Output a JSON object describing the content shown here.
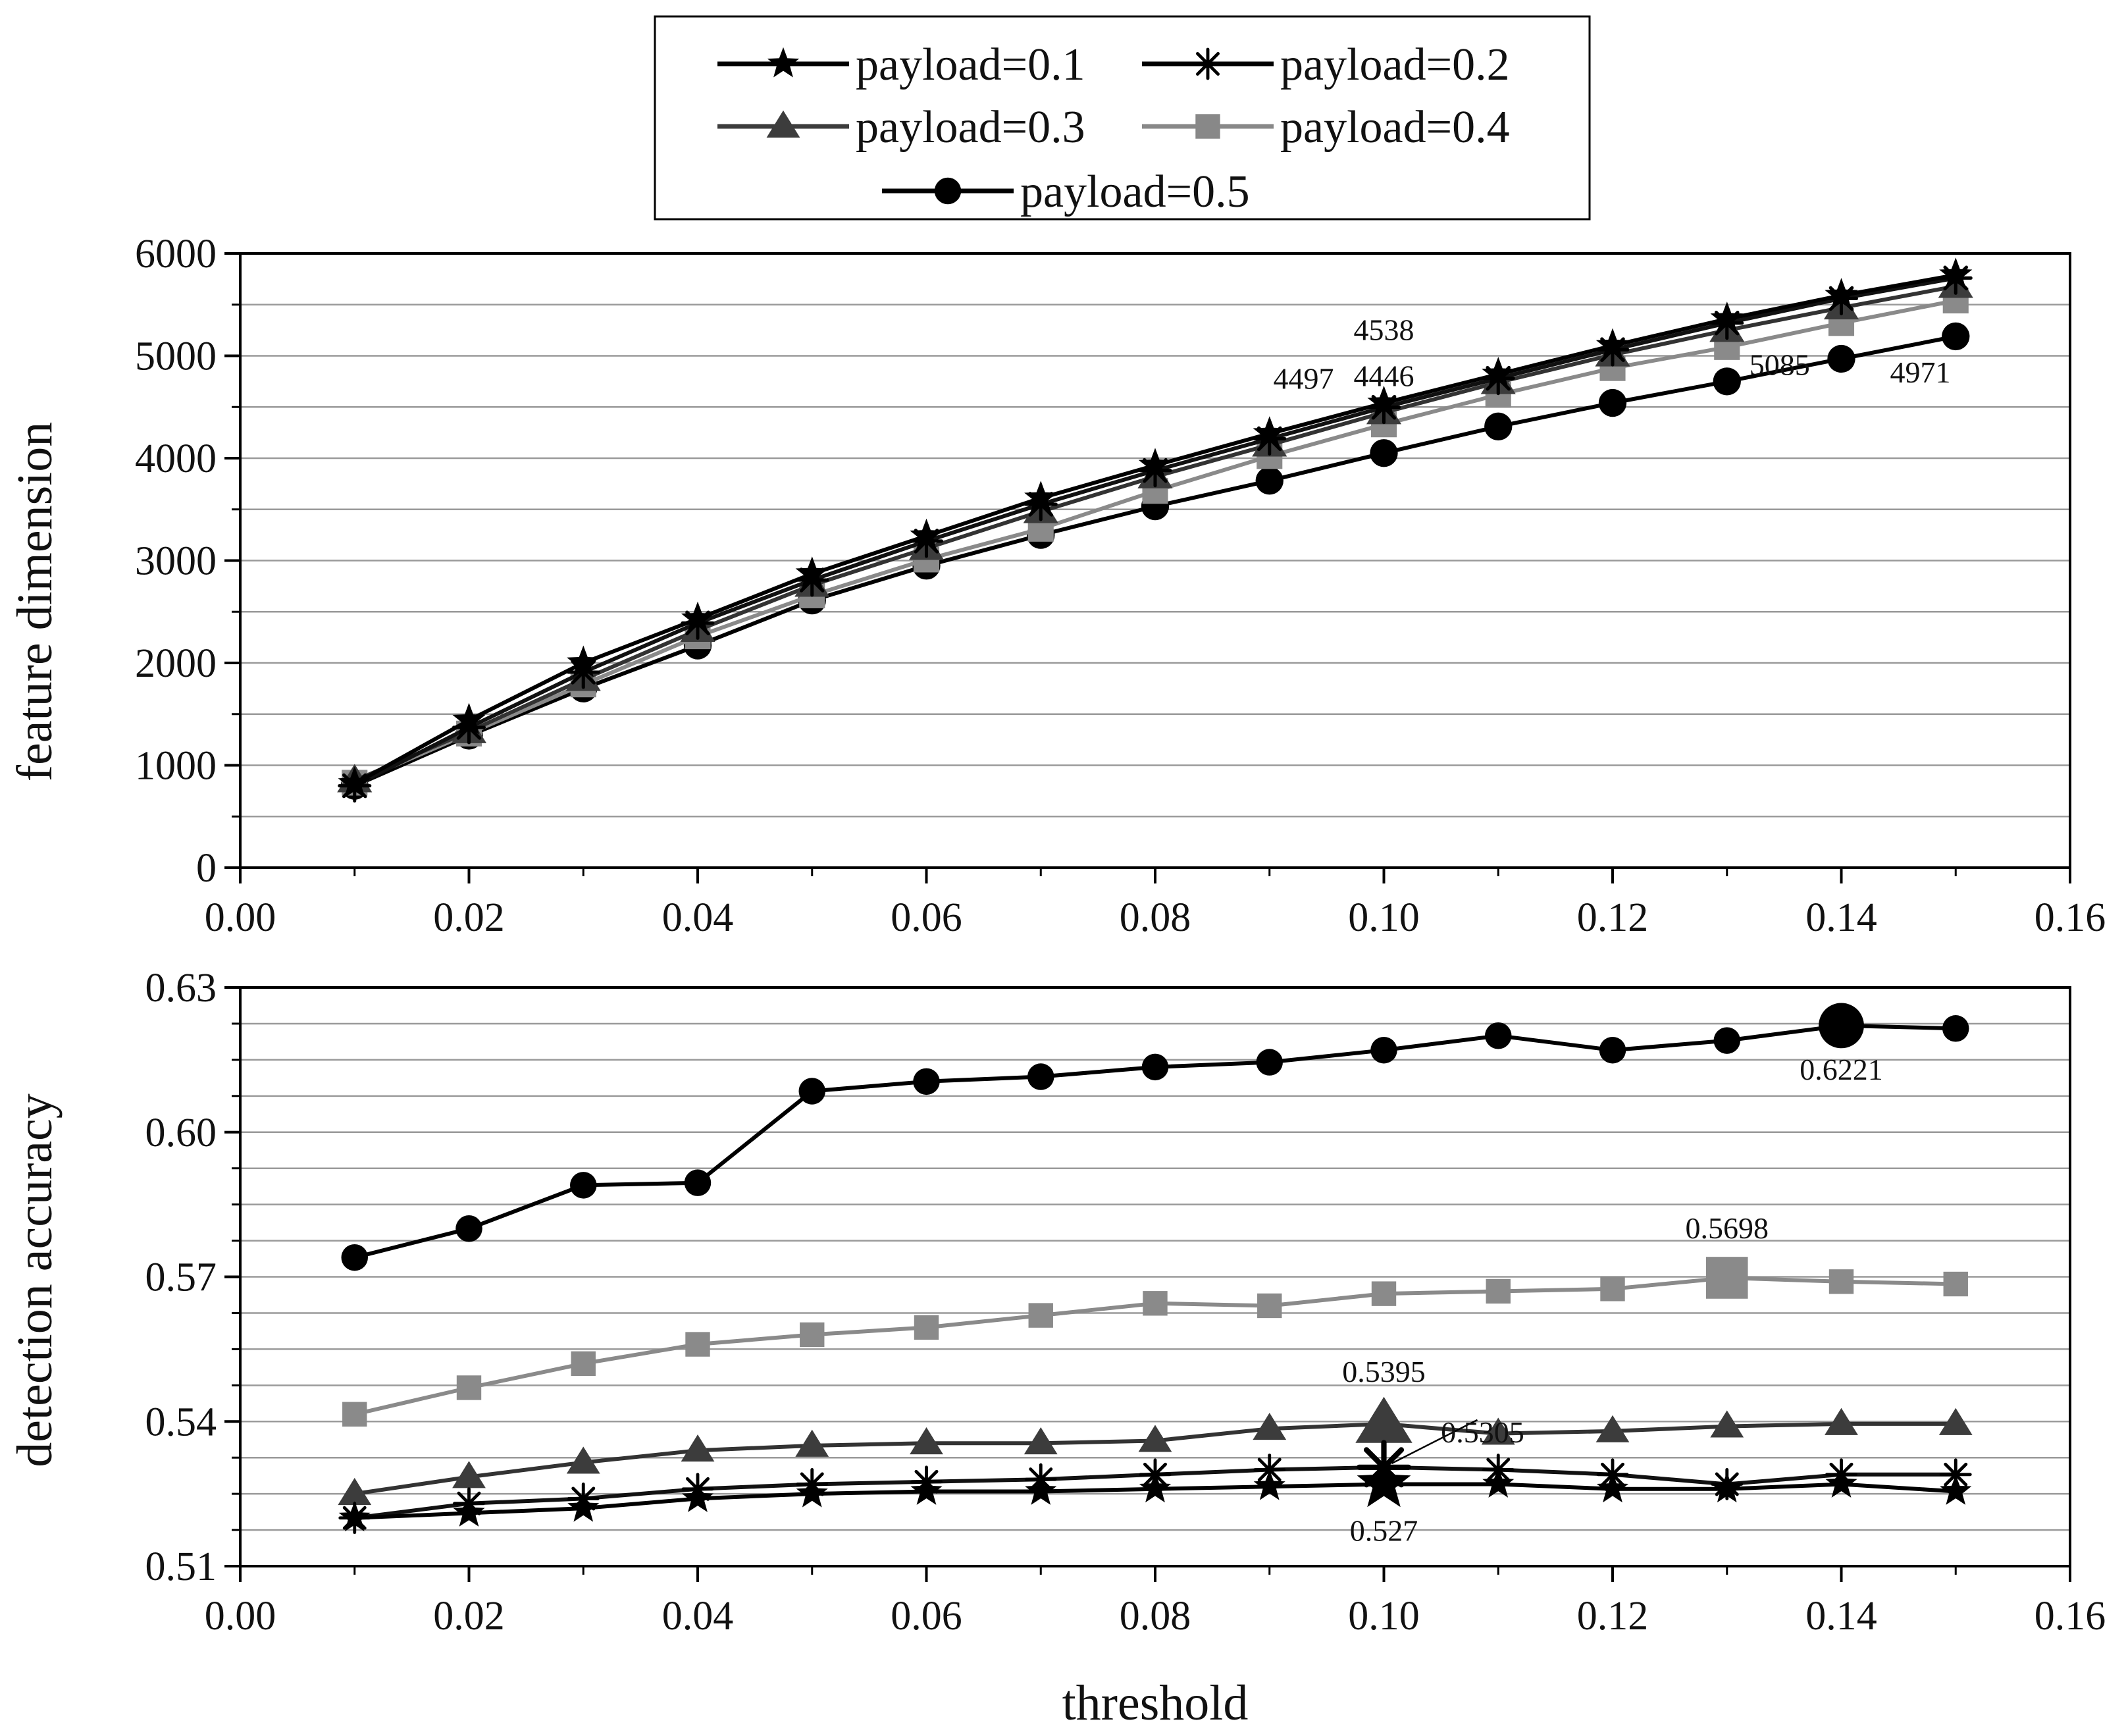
{
  "colors": {
    "black": "#000000",
    "dark": "#2b2b2b",
    "mid": "#444444",
    "light": "#888888",
    "grid": "#9a9a9a"
  },
  "legend": {
    "entries": [
      {
        "label": "payload=0.1",
        "marker": "star",
        "color": "#000000"
      },
      {
        "label": "payload=0.2",
        "marker": "asterisk",
        "color": "#000000"
      },
      {
        "label": "payload=0.3",
        "marker": "triangle",
        "color": "#3c3c3c"
      },
      {
        "label": "payload=0.4",
        "marker": "square",
        "color": "#888888"
      },
      {
        "label": "payload=0.5",
        "marker": "circle",
        "color": "#000000"
      }
    ]
  },
  "chart_data": [
    {
      "type": "line",
      "title": "",
      "xlabel": "",
      "ylabel": "feature dimension",
      "xlim": [
        0,
        0.16
      ],
      "ylim": [
        0,
        6000
      ],
      "xticks": [
        "0.00",
        "0.02",
        "0.04",
        "0.06",
        "0.08",
        "0.10",
        "0.12",
        "0.14",
        "0.16"
      ],
      "yticks": [
        "0",
        "1000",
        "2000",
        "3000",
        "4000",
        "5000",
        "6000"
      ],
      "x": [
        0.01,
        0.02,
        0.03,
        0.04,
        0.05,
        0.06,
        0.07,
        0.08,
        0.09,
        0.1,
        0.11,
        0.12,
        0.13,
        0.14,
        0.15
      ],
      "series": [
        {
          "name": "payload=0.1",
          "values": [
            820,
            1440,
            2000,
            2430,
            2870,
            3240,
            3610,
            3930,
            4240,
            4538,
            4820,
            5100,
            5360,
            5590,
            5790
          ]
        },
        {
          "name": "payload=0.2",
          "values": [
            800,
            1370,
            1910,
            2390,
            2810,
            3190,
            3550,
            3880,
            4190,
            4497,
            4780,
            5060,
            5320,
            5560,
            5760
          ]
        },
        {
          "name": "payload=0.3",
          "values": [
            850,
            1330,
            1840,
            2320,
            2760,
            3120,
            3480,
            3820,
            4130,
            4446,
            4740,
            5010,
            5250,
            5470,
            5680
          ]
        },
        {
          "name": "payload=0.4",
          "values": [
            830,
            1310,
            1790,
            2260,
            2660,
            3010,
            3310,
            3680,
            4020,
            4330,
            4620,
            4880,
            5085,
            5320,
            5540
          ]
        },
        {
          "name": "payload=0.5",
          "values": [
            800,
            1290,
            1750,
            2170,
            2610,
            2950,
            3250,
            3530,
            3780,
            4050,
            4310,
            4540,
            4750,
            4971,
            5190
          ]
        }
      ],
      "annotations": [
        {
          "text": "4538",
          "x": 0.1,
          "y": 4538,
          "series": "payload=0.1"
        },
        {
          "text": "4497",
          "x": 0.1,
          "y": 4497,
          "series": "payload=0.2"
        },
        {
          "text": "4446",
          "x": 0.1,
          "y": 4446,
          "series": "payload=0.3"
        },
        {
          "text": "5085",
          "x": 0.13,
          "y": 5085,
          "series": "payload=0.4"
        },
        {
          "text": "4971",
          "x": 0.14,
          "y": 4971,
          "series": "payload=0.5"
        }
      ],
      "grid": true
    },
    {
      "type": "line",
      "title": "",
      "xlabel": "threshold",
      "ylabel": "detection accuracy",
      "xlim": [
        0,
        0.16
      ],
      "ylim": [
        0.51,
        0.63
      ],
      "xticks": [
        "0.00",
        "0.02",
        "0.04",
        "0.06",
        "0.08",
        "0.10",
        "0.12",
        "0.14",
        "0.16"
      ],
      "yticks": [
        "0.51",
        "0.54",
        "0.57",
        "0.60",
        "0.63"
      ],
      "x": [
        0.01,
        0.02,
        0.03,
        0.04,
        0.05,
        0.06,
        0.07,
        0.08,
        0.09,
        0.1,
        0.11,
        0.12,
        0.13,
        0.14,
        0.15
      ],
      "series": [
        {
          "name": "payload=0.1",
          "values": [
            0.52,
            0.521,
            0.522,
            0.524,
            0.525,
            0.5255,
            0.5255,
            0.526,
            0.5265,
            0.527,
            0.527,
            0.526,
            0.526,
            0.527,
            0.5255
          ]
        },
        {
          "name": "payload=0.2",
          "values": [
            0.52,
            0.523,
            0.524,
            0.526,
            0.527,
            0.5275,
            0.528,
            0.529,
            0.53,
            0.5305,
            0.53,
            0.529,
            0.527,
            0.529,
            0.529
          ]
        },
        {
          "name": "payload=0.3",
          "values": [
            0.525,
            0.5285,
            0.5315,
            0.534,
            0.535,
            0.5355,
            0.5355,
            0.536,
            0.5385,
            0.5395,
            0.5375,
            0.538,
            0.539,
            0.5395,
            0.5395
          ]
        },
        {
          "name": "payload=0.4",
          "values": [
            0.5415,
            0.547,
            0.552,
            0.556,
            0.558,
            0.5595,
            0.562,
            0.5645,
            0.564,
            0.5665,
            0.567,
            0.5675,
            0.5698,
            0.569,
            0.5685
          ]
        },
        {
          "name": "payload=0.5",
          "values": [
            0.574,
            0.58,
            0.589,
            0.5895,
            0.6085,
            0.6105,
            0.6115,
            0.6135,
            0.6145,
            0.617,
            0.62,
            0.617,
            0.619,
            0.6221,
            0.6215
          ]
        }
      ],
      "annotations": [
        {
          "text": "0.6221",
          "x": 0.14,
          "y": 0.6221,
          "series": "payload=0.5"
        },
        {
          "text": "0.5698",
          "x": 0.13,
          "y": 0.5698,
          "series": "payload=0.4"
        },
        {
          "text": "0.5395",
          "x": 0.1,
          "y": 0.5395,
          "series": "payload=0.3"
        },
        {
          "text": "0.5305",
          "x": 0.1,
          "y": 0.5305,
          "series": "payload=0.2"
        },
        {
          "text": "0.527",
          "x": 0.1,
          "y": 0.527,
          "series": "payload=0.1"
        }
      ],
      "grid": true
    }
  ]
}
